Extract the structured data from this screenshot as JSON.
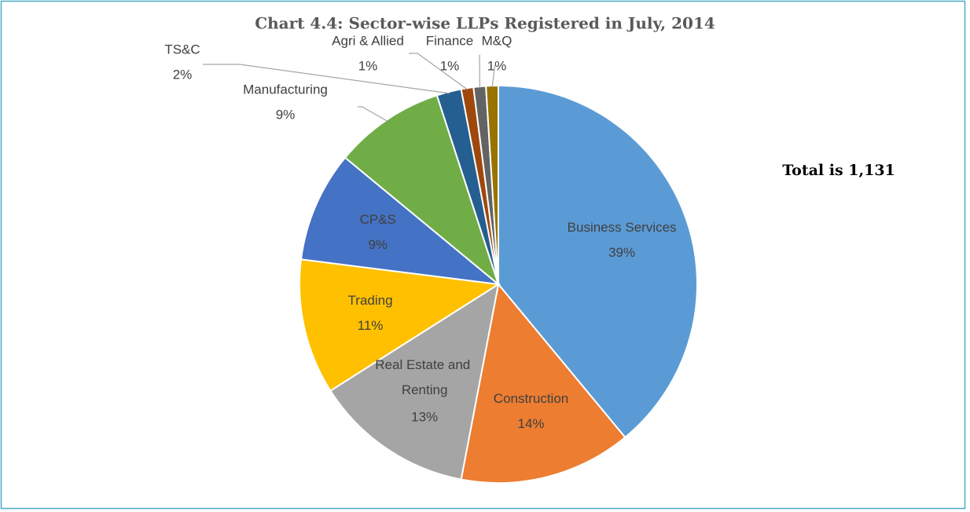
{
  "chart_data": {
    "type": "pie",
    "title": "Chart 4.4: Sector-wise LLPs Registered in July, 2014",
    "annotation": "Total is 1,131",
    "categories": [
      "Business Services",
      "Construction",
      "Real Estate and Renting",
      "Trading",
      "CP&S",
      "Manufacturing",
      "TS&C",
      "Agri & Allied",
      "Finance",
      "M&Q"
    ],
    "values": [
      39,
      14,
      13,
      11,
      9,
      9,
      2,
      1,
      1,
      1
    ],
    "value_labels": [
      "39%",
      "14%",
      "13%",
      "11%",
      "9%",
      "9%",
      "2%",
      "1%",
      "1%",
      "1%"
    ],
    "colors": [
      "#5b9bd5",
      "#ed7d31",
      "#a5a5a5",
      "#ffc000",
      "#4472c4",
      "#70ad47",
      "#255e91",
      "#9e480e",
      "#636363",
      "#997300"
    ]
  }
}
